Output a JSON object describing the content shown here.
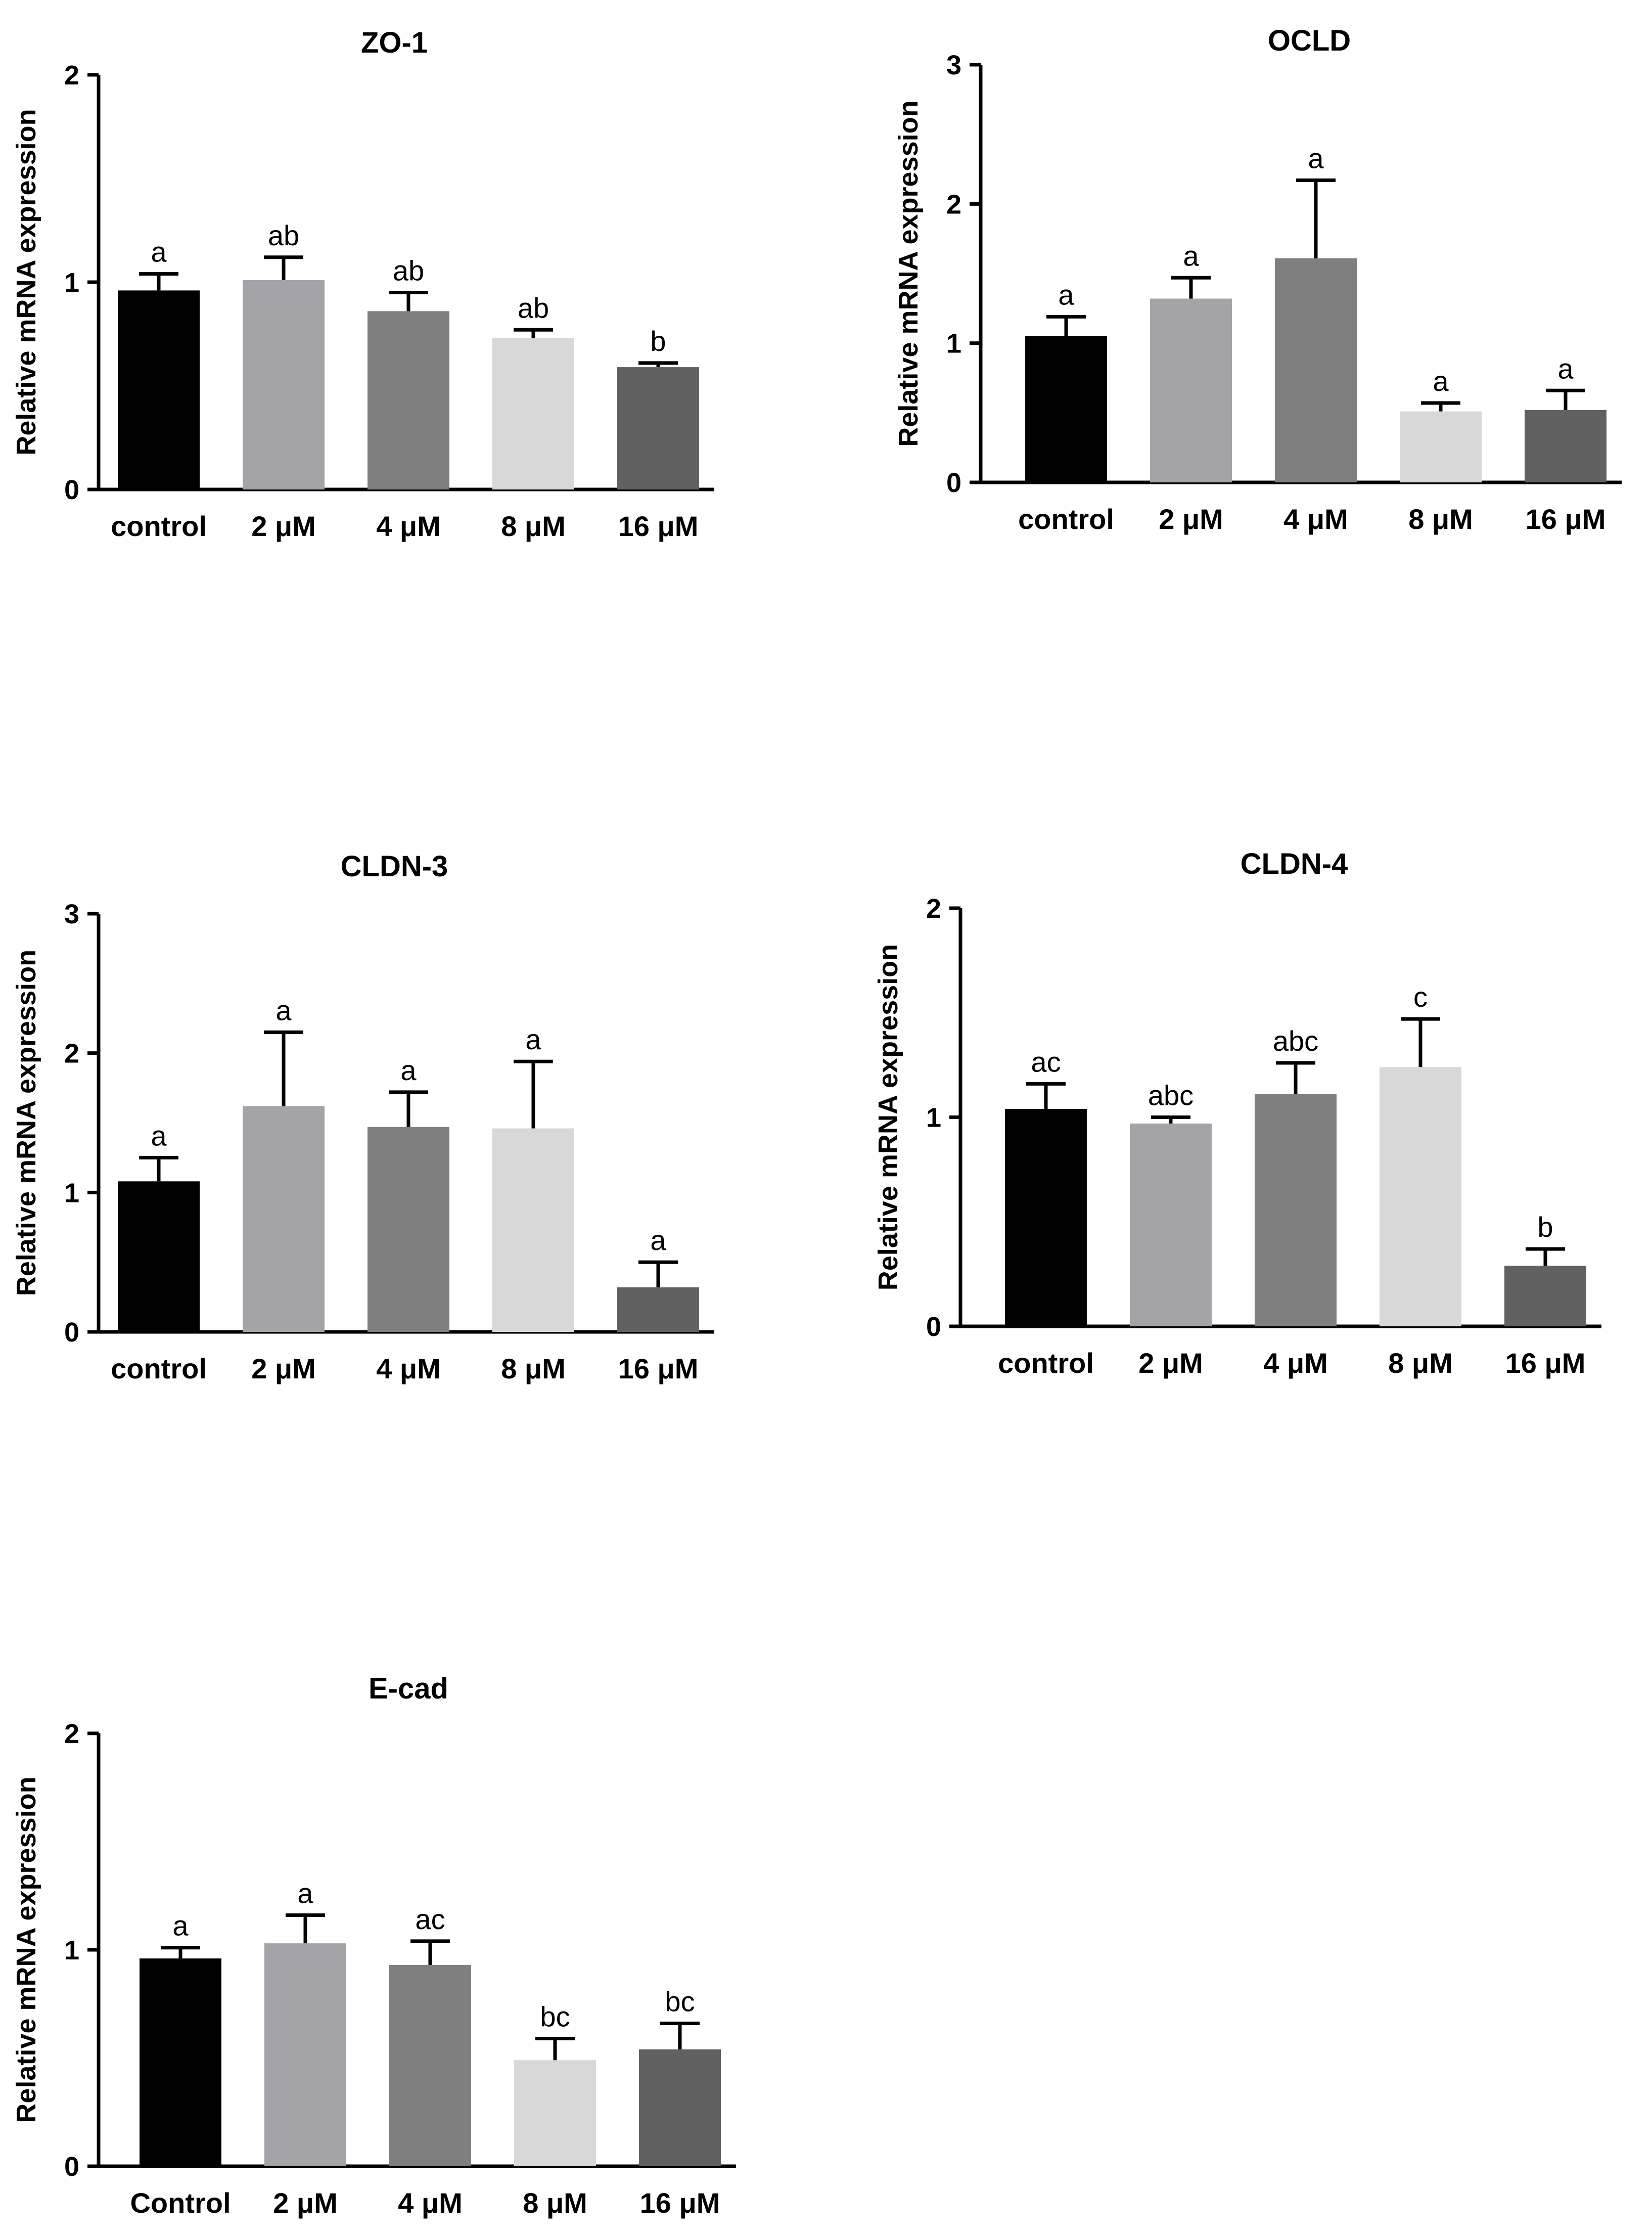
{
  "chart_data": [
    {
      "type": "bar",
      "title": "ZO-1",
      "xlabel": "",
      "ylabel": "Relative mRNA expression",
      "ylim": [
        0,
        2
      ],
      "yticks": [
        "0",
        "1",
        "2"
      ],
      "categories": [
        "control",
        "2 μM",
        "4 μM",
        "8 μM",
        "16 μM"
      ],
      "values": [
        0.96,
        1.01,
        0.86,
        0.73,
        0.59
      ],
      "errors": [
        0.08,
        0.11,
        0.09,
        0.04,
        0.02
      ],
      "significance": [
        "a",
        "ab",
        "ab",
        "ab",
        "b"
      ],
      "colors": [
        "#000000",
        "#a4a4a8",
        "#7f7f7f",
        "#d8d8d8",
        "#616161"
      ]
    },
    {
      "type": "bar",
      "title": "OCLD",
      "xlabel": "",
      "ylabel": "Relative mRNA expression",
      "ylim": [
        0,
        3
      ],
      "yticks": [
        "0",
        "1",
        "2",
        "3"
      ],
      "categories": [
        "control",
        "2 μM",
        "4 μM",
        "8 μM",
        "16 μM"
      ],
      "values": [
        1.05,
        1.32,
        1.61,
        0.51,
        0.52
      ],
      "errors": [
        0.14,
        0.15,
        0.56,
        0.06,
        0.14
      ],
      "significance": [
        "a",
        "a",
        "a",
        "a",
        "a"
      ],
      "colors": [
        "#000000",
        "#a4a4a8",
        "#7f7f7f",
        "#d8d8d8",
        "#616161"
      ]
    },
    {
      "type": "bar",
      "title": "CLDN-3",
      "xlabel": "",
      "ylabel": "Relative mRNA expression",
      "ylim": [
        0,
        3
      ],
      "yticks": [
        "0",
        "1",
        "2",
        "3"
      ],
      "categories": [
        "control",
        "2 μM",
        "4 μM",
        "8 μM",
        "16 μM"
      ],
      "values": [
        1.08,
        1.62,
        1.47,
        1.46,
        0.32
      ],
      "errors": [
        0.17,
        0.53,
        0.25,
        0.48,
        0.18
      ],
      "significance": [
        "a",
        "a",
        "a",
        "a",
        "a"
      ],
      "colors": [
        "#000000",
        "#a4a4a8",
        "#7f7f7f",
        "#d8d8d8",
        "#616161"
      ]
    },
    {
      "type": "bar",
      "title": "CLDN-4",
      "xlabel": "",
      "ylabel": "Relative mRNA expression",
      "ylim": [
        0,
        2
      ],
      "yticks": [
        "0",
        "1",
        "2"
      ],
      "categories": [
        "control",
        "2 μM",
        "4 μM",
        "8 μM",
        "16 μM"
      ],
      "values": [
        1.04,
        0.97,
        1.11,
        1.24,
        0.29
      ],
      "errors": [
        0.12,
        0.03,
        0.15,
        0.23,
        0.08
      ],
      "significance": [
        "ac",
        "abc",
        "abc",
        "c",
        "b"
      ],
      "colors": [
        "#000000",
        "#a4a4a8",
        "#7f7f7f",
        "#d8d8d8",
        "#616161"
      ]
    },
    {
      "type": "bar",
      "title": "E-cad",
      "xlabel": "",
      "ylabel": "Relative mRNA expression",
      "ylim": [
        0,
        2
      ],
      "yticks": [
        "0",
        "1",
        "2"
      ],
      "categories": [
        "Control",
        "2 μM",
        "4 μM",
        "8 μM",
        "16 μM"
      ],
      "values": [
        0.96,
        1.03,
        0.93,
        0.49,
        0.54
      ],
      "errors": [
        0.05,
        0.13,
        0.11,
        0.1,
        0.12
      ],
      "significance": [
        "a",
        "a",
        "ac",
        "bc",
        "bc"
      ],
      "colors": [
        "#000000",
        "#a4a4a8",
        "#7f7f7f",
        "#d8d8d8",
        "#616161"
      ]
    }
  ]
}
